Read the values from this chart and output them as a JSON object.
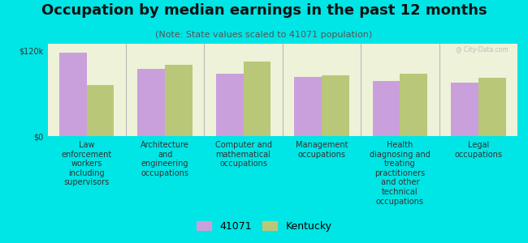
{
  "title": "Occupation by median earnings in the past 12 months",
  "subtitle": "(Note: State values scaled to 41071 population)",
  "background_color": "#00e5e5",
  "plot_bg_color": "#eef2d8",
  "categories": [
    "Law\nenforcement\nworkers\nincluding\nsupervisors",
    "Architecture\nand\nengineering\noccupations",
    "Computer and\nmathematical\noccupations",
    "Management\noccupations",
    "Health\ndiagnosing and\ntreating\npractitioners\nand other\ntechnical\noccupations",
    "Legal\noccupations"
  ],
  "values_41071": [
    118000,
    95000,
    88000,
    83000,
    78000,
    75000
  ],
  "values_kentucky": [
    72000,
    100000,
    105000,
    86000,
    88000,
    82000
  ],
  "ylim": [
    0,
    130000
  ],
  "yticks": [
    0,
    120000
  ],
  "ytick_labels": [
    "$0",
    "$120k"
  ],
  "color_41071": "#c9a0dc",
  "color_kentucky": "#b8c878",
  "legend_41071": "41071",
  "legend_kentucky": "Kentucky",
  "bar_width": 0.35,
  "title_fontsize": 13,
  "subtitle_fontsize": 8,
  "tick_fontsize": 7,
  "legend_fontsize": 9
}
